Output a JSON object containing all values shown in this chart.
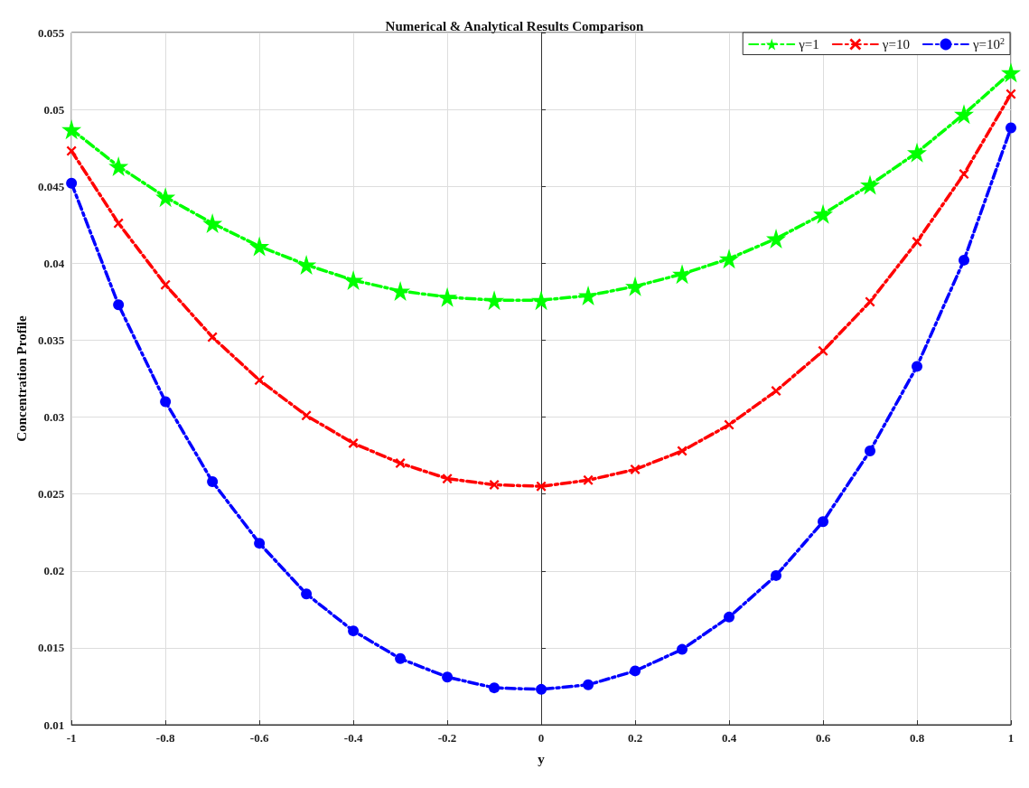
{
  "chart_data": {
    "type": "line",
    "title": "Numerical & Analytical Results Comparison",
    "xlabel": "y",
    "ylabel": "Concentration Profile",
    "x": [
      -1,
      -0.9,
      -0.8,
      -0.7,
      -0.6,
      -0.5,
      -0.4,
      -0.3,
      -0.2,
      -0.1,
      0,
      0.1,
      0.2,
      0.3,
      0.4,
      0.5,
      0.6,
      0.7,
      0.8,
      0.9,
      1
    ],
    "series": [
      {
        "name": "γ=1",
        "color": "#00ff00",
        "marker": "star",
        "values": [
          0.0487,
          0.0463,
          0.0443,
          0.0426,
          0.0411,
          0.0399,
          0.0389,
          0.0382,
          0.0378,
          0.0376,
          0.0376,
          0.0379,
          0.0385,
          0.0393,
          0.0403,
          0.0416,
          0.0432,
          0.0451,
          0.0472,
          0.0497,
          0.0524
        ]
      },
      {
        "name": "γ=10",
        "color": "#ff0000",
        "marker": "cross",
        "values": [
          0.0473,
          0.0426,
          0.0386,
          0.0352,
          0.0324,
          0.0301,
          0.0283,
          0.027,
          0.026,
          0.0256,
          0.0255,
          0.0259,
          0.0266,
          0.0278,
          0.0295,
          0.0317,
          0.0343,
          0.0375,
          0.0414,
          0.0458,
          0.051
        ]
      },
      {
        "name": "γ=10$^{2}$",
        "color": "#0000ff",
        "marker": "circle",
        "values": [
          0.0452,
          0.0373,
          0.031,
          0.0258,
          0.0218,
          0.0185,
          0.0161,
          0.0143,
          0.0131,
          0.0124,
          0.0123,
          0.0126,
          0.0135,
          0.0149,
          0.017,
          0.0197,
          0.0232,
          0.0278,
          0.0333,
          0.0402,
          0.0488
        ]
      }
    ],
    "xlim": [
      -1,
      1
    ],
    "xticks": [
      -1,
      -0.8,
      -0.6,
      -0.4,
      -0.2,
      0,
      0.2,
      0.4,
      0.6,
      0.8,
      1
    ],
    "ylim": [
      0.01,
      0.055
    ],
    "yticks": [
      0.01,
      0.015,
      0.02,
      0.025,
      0.03,
      0.035,
      0.04,
      0.045,
      0.05,
      0.055
    ],
    "grid": true,
    "legend": "top right",
    "line_style": "dashed"
  }
}
